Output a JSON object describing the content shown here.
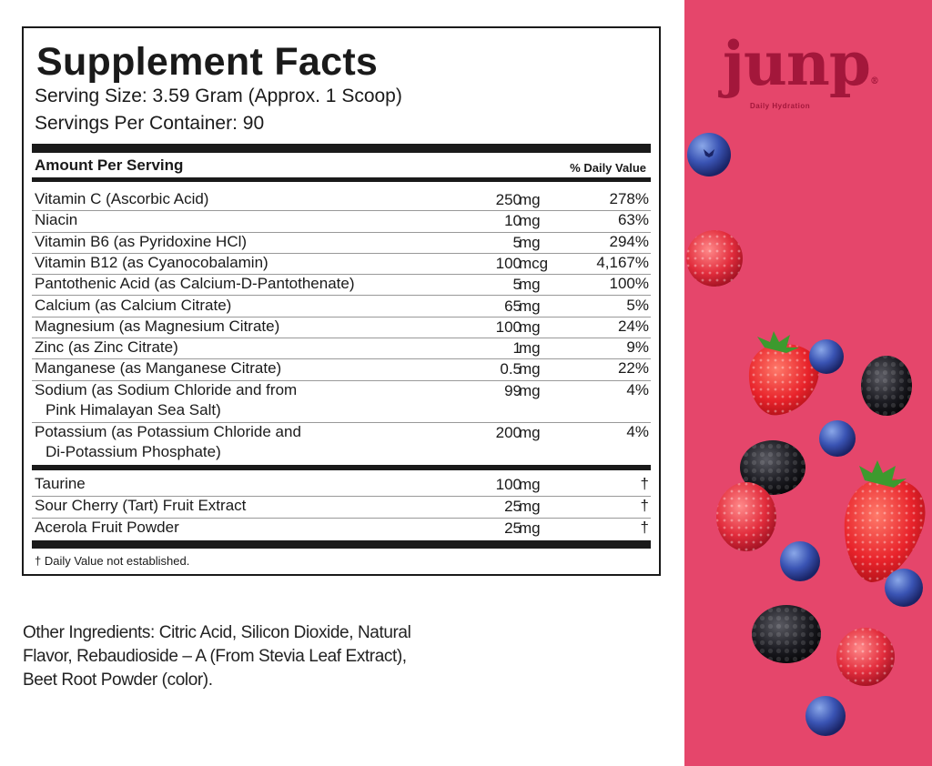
{
  "facts": {
    "title": "Supplement Facts",
    "serving_size": "Serving Size: 3.59 Gram (Approx. 1 Scoop)",
    "servings_per_container": "Servings Per Container: 90",
    "amount_header": "Amount Per Serving",
    "dv_header": "% Daily Value",
    "nutrients": [
      {
        "name": "Vitamin C (Ascorbic Acid)",
        "amount": "250",
        "unit": "mg",
        "dv": "278%"
      },
      {
        "name": "Niacin",
        "amount": "10",
        "unit": "mg",
        "dv": "63%"
      },
      {
        "name": "Vitamin B6 (as Pyridoxine HCl)",
        "amount": "5",
        "unit": "mg",
        "dv": "294%"
      },
      {
        "name": "Vitamin B12 (as Cyanocobalamin)",
        "amount": "100",
        "unit": "mcg",
        "dv": "4,167%"
      },
      {
        "name": "Pantothenic Acid (as Calcium-D-Pantothenate)",
        "amount": "5",
        "unit": "mg",
        "dv": "100%"
      },
      {
        "name": "Calcium (as Calcium Citrate)",
        "amount": "65",
        "unit": "mg",
        "dv": "5%"
      },
      {
        "name": "Magnesium (as Magnesium Citrate)",
        "amount": "100",
        "unit": "mg",
        "dv": "24%"
      },
      {
        "name": "Zinc (as Zinc Citrate)",
        "amount": "1",
        "unit": "mg",
        "dv": "9%"
      },
      {
        "name": "Manganese (as Manganese Citrate)",
        "amount": "0.5",
        "unit": "mg",
        "dv": "22%"
      },
      {
        "name": "Sodium (as Sodium Chloride and from",
        "name2": "Pink Himalayan Sea Salt)",
        "amount": "99",
        "unit": "mg",
        "dv": "4%"
      },
      {
        "name": "Potassium (as Potassium Chloride and",
        "name2": "Di-Potassium Phosphate)",
        "amount": "200",
        "unit": "mg",
        "dv": "4%"
      }
    ],
    "others": [
      {
        "name": "Taurine",
        "amount": "100",
        "unit": "mg",
        "dv": "†"
      },
      {
        "name": "Sour Cherry (Tart) Fruit Extract",
        "amount": "25",
        "unit": "mg",
        "dv": "†"
      },
      {
        "name": "Acerola Fruit Powder",
        "amount": "25",
        "unit": "mg",
        "dv": "†"
      }
    ],
    "footnote": "† Daily Value not established."
  },
  "other_ingredients": {
    "line1": "Other Ingredients: Citric Acid, Silicon Dioxide, Natural",
    "line2": "Flavor, Rebaudioside – A (From Stevia Leaf Extract),",
    "line3": "Beet Root Powder (color)."
  },
  "brand": {
    "logo": "junp",
    "registered": "®",
    "tagline": "Daily Hydration",
    "panel_color": "#e5466b",
    "logo_color": "#a3173b"
  }
}
